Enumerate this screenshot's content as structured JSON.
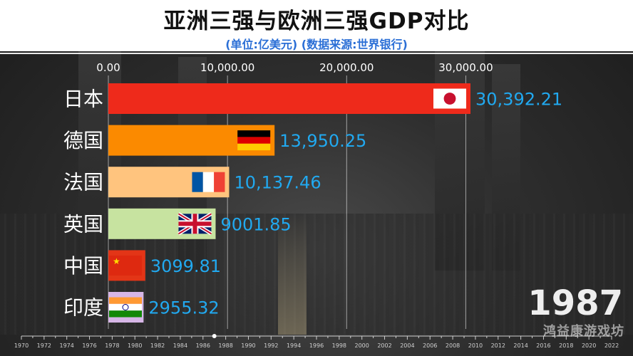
{
  "header": {
    "title": "亚洲三强与欧洲三强GDP对比",
    "subtitle": "(单位:亿美元) (数据来源:世界银行)"
  },
  "overlay": {
    "year": "1987",
    "watermark": "鸿益康游戏坊"
  },
  "chart_data": {
    "type": "bar",
    "orientation": "horizontal",
    "xlim": [
      0,
      30392.21
    ],
    "x_ticks": [
      0,
      10000,
      20000,
      30000
    ],
    "x_tick_labels": [
      "0.00",
      "10,000.00",
      "20,000.00",
      "30,000.00"
    ],
    "grid": true,
    "bars": [
      {
        "label": "日本",
        "value": 30392.21,
        "value_label": "30,392.21",
        "color": "#ee2a1b",
        "flag": "japan-flag"
      },
      {
        "label": "德国",
        "value": 13950.25,
        "value_label": "13,950.25",
        "color": "#fb8a00",
        "flag": "germany-flag"
      },
      {
        "label": "法国",
        "value": 10137.46,
        "value_label": "10,137.46",
        "color": "#ffc47e",
        "flag": "france-flag"
      },
      {
        "label": "英国",
        "value": 9001.85,
        "value_label": "9001.85",
        "color": "#c7e3a0",
        "flag": "uk-flag"
      },
      {
        "label": "中国",
        "value": 3099.81,
        "value_label": "3099.81",
        "color": "#e33517",
        "flag": "china-flag"
      },
      {
        "label": "印度",
        "value": 2955.32,
        "value_label": "2955.32",
        "color": "#d6b6e6",
        "flag": "india-flag"
      }
    ],
    "value_label_color": "#21a9f0",
    "timeline": {
      "years": [
        "1970",
        "1972",
        "1974",
        "1976",
        "1978",
        "1980",
        "1982",
        "1984",
        "1986",
        "1988",
        "1990",
        "1992",
        "1994",
        "1996",
        "1998",
        "2000",
        "2002",
        "2004",
        "2006",
        "2008",
        "2010",
        "2012",
        "2014",
        "2016",
        "2018",
        "2020",
        "2022"
      ],
      "current": "1987"
    }
  }
}
